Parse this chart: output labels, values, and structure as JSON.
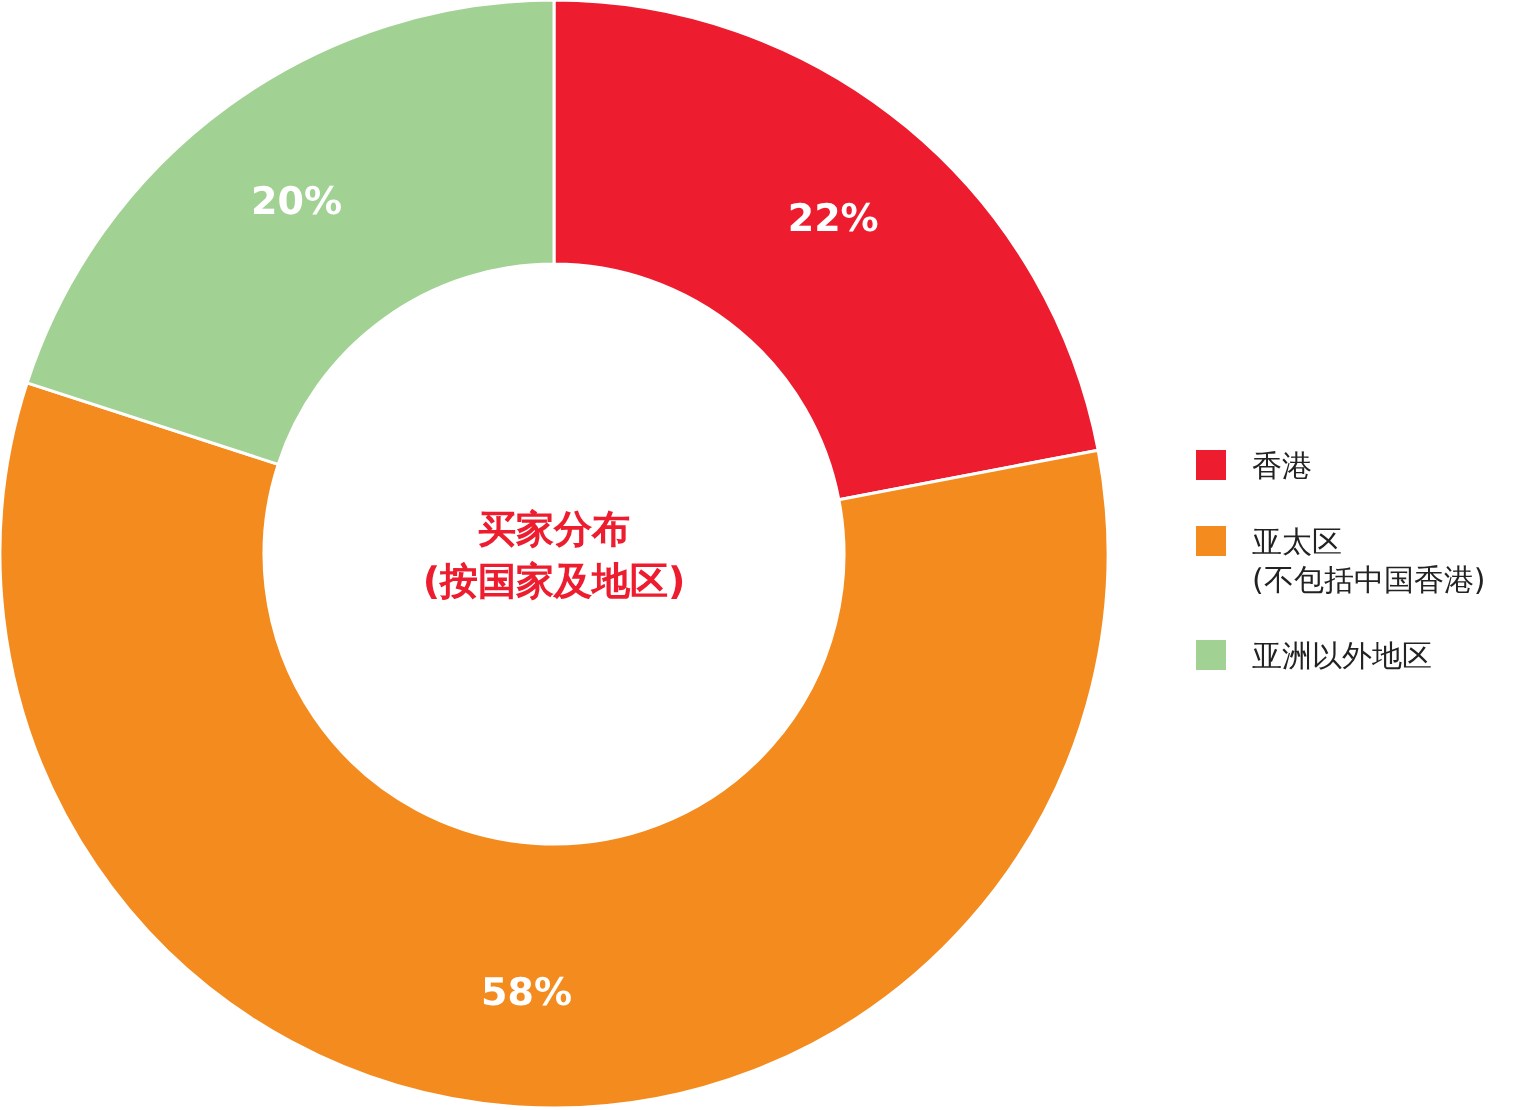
{
  "chart_data": {
    "type": "donut",
    "title": "买家分布\n(按国家及地区)",
    "categories": [
      "香港",
      "亚太区\n(不包括中国香港)",
      "亚洲以外地区"
    ],
    "values": [
      22,
      58,
      20
    ],
    "colors": [
      "#ed1c2e",
      "#f48b1f",
      "#a1d293"
    ],
    "value_labels": [
      "22%",
      "58%",
      "20%"
    ],
    "legend": "right"
  }
}
